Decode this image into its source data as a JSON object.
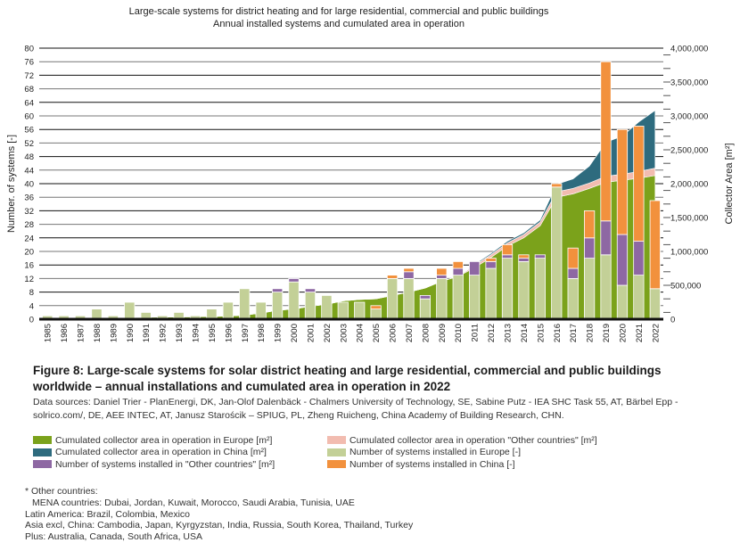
{
  "chart_data": {
    "type": "bar",
    "title": "Large-scale systems for district heating and for large residential, commercial and public buildings",
    "subtitle": "Annual installed systems and cumulated area in operation",
    "xlabel": "",
    "ylabel": "Number. of systems [-]",
    "ylabel_right": "Collector Area [m²]",
    "ylim": [
      0,
      80
    ],
    "ylim_right": [
      0,
      4000000
    ],
    "yticks": [
      "0",
      "4",
      "8",
      "12",
      "16",
      "20",
      "24",
      "28",
      "32",
      "36",
      "40",
      "44",
      "48",
      "52",
      "56",
      "60",
      "64",
      "68",
      "72",
      "76",
      "80"
    ],
    "yticks_right": [
      "0",
      "500,000",
      "1,000,000",
      "1,500,000",
      "2,000,000",
      "2,500,000",
      "3,000,000",
      "3,500,000",
      "4,000,000"
    ],
    "grid": true,
    "categories": [
      "1985",
      "1986",
      "1987",
      "1988",
      "1989",
      "1990",
      "1991",
      "1992",
      "1993",
      "1994",
      "1995",
      "1996",
      "1997",
      "1998",
      "1999",
      "2000",
      "2001",
      "2002",
      "2003",
      "2004",
      "2005",
      "2006",
      "2007",
      "2008",
      "2009",
      "2010",
      "2011",
      "2012",
      "2013",
      "2014",
      "2015",
      "2016",
      "2017",
      "2018",
      "2019",
      "2020",
      "2021",
      "2022"
    ],
    "bar_series": [
      {
        "name": "Number of systems installed in Europe [-]",
        "color": "#c3d097",
        "values": [
          1,
          1,
          1,
          3,
          1,
          5,
          2,
          1,
          2,
          1,
          3,
          5,
          9,
          5,
          8,
          11,
          8,
          7,
          5,
          5,
          3,
          12,
          12,
          6,
          12,
          13,
          13,
          15,
          18,
          17,
          18,
          39,
          12,
          18,
          19,
          10,
          13,
          9
        ]
      },
      {
        "name": "Number of systems installed in \"Other countries\" [m²]",
        "color": "#8e68a3",
        "values": [
          0,
          0,
          0,
          0,
          0,
          0,
          0,
          0,
          0,
          0,
          0,
          0,
          0,
          0,
          1,
          1,
          1,
          0,
          0,
          0,
          0,
          0,
          2,
          1,
          1,
          2,
          4,
          2,
          1,
          1,
          1,
          0,
          3,
          6,
          10,
          15,
          10,
          0
        ]
      },
      {
        "name": "Number of systems installed in China [-]",
        "color": "#f2913d",
        "values": [
          0,
          0,
          0,
          0,
          0,
          0,
          0,
          0,
          0,
          0,
          0,
          0,
          0,
          0,
          0,
          0,
          0,
          0,
          0,
          0,
          1,
          1,
          1,
          0,
          2,
          2,
          0,
          1,
          3,
          1,
          0,
          1,
          6,
          8,
          47,
          31,
          34,
          26
        ]
      }
    ],
    "area_series": [
      {
        "name": "Cumulated collector area in operation in Europe [m²]",
        "color": "#7ba21b",
        "values": [
          5000,
          8000,
          10000,
          15000,
          18000,
          25000,
          28000,
          30000,
          33000,
          35000,
          40000,
          45000,
          60000,
          90000,
          130000,
          150000,
          190000,
          220000,
          270000,
          290000,
          300000,
          350000,
          400000,
          460000,
          560000,
          630000,
          760000,
          910000,
          1080000,
          1200000,
          1380000,
          1800000,
          1850000,
          1930000,
          2020000,
          2050000,
          2080000,
          2120000
        ]
      },
      {
        "name": "Cumulated collector area in operation \"Other countries\" [m²]",
        "color": "#f2bcb0",
        "values": [
          0,
          0,
          0,
          0,
          0,
          0,
          0,
          0,
          0,
          0,
          0,
          0,
          0,
          0,
          0,
          0,
          0,
          0,
          0,
          0,
          0,
          0,
          0,
          0,
          0,
          0,
          35000,
          40000,
          45000,
          50000,
          55000,
          80000,
          80000,
          80000,
          90000,
          90000,
          100000,
          110000
        ]
      },
      {
        "name": "Cumulated collector area in operation in China [m²]",
        "color": "#2e6b7e",
        "values": [
          0,
          0,
          0,
          0,
          0,
          0,
          0,
          0,
          0,
          0,
          0,
          0,
          0,
          0,
          0,
          0,
          0,
          0,
          0,
          0,
          0,
          0,
          0,
          0,
          0,
          0,
          15000,
          20000,
          25000,
          25000,
          30000,
          110000,
          140000,
          250000,
          500000,
          560000,
          730000,
          850000
        ]
      }
    ]
  },
  "caption": {
    "title": "Figure 8: Large-scale systems for solar district heating and large residential, commercial and public buildings worldwide – annual installations and cumulated area in operation in 2022",
    "sources": "Data sources: Daniel Trier - PlanEnergi, DK, Jan-Olof Dalenbäck - Chalmers University of Technology, SE, Sabine Putz - IEA SHC Task 55, AT, Bärbel Epp - solrico.com/, DE, AEE  INTEC, AT, Janusz Starościk – SPIUG, PL, Zheng Ruicheng, China Academy of Building Research, CHN."
  },
  "legend": {
    "left": [
      {
        "label": "Cumulated collector area in operation in Europe [m²]",
        "color": "#7ba21b"
      },
      {
        "label": "Cumulated collector area in operation in China [m²]",
        "color": "#2e6b7e"
      },
      {
        "label": "Number of systems installed in \"Other countries\" [m²]",
        "color": "#8e68a3"
      }
    ],
    "right": [
      {
        "label": "Cumulated collector area in operation \"Other countries\" [m²]",
        "color": "#f2bcb0"
      },
      {
        "label": "Number of systems installed in Europe [-]",
        "color": "#c3d097"
      },
      {
        "label": "Number of systems installed in China [-]",
        "color": "#f2913d"
      }
    ]
  },
  "notes": {
    "heading": "* Other countries:",
    "lines": [
      "MENA countries: Dubai, Jordan, Kuwait, Morocco, Saudi Arabia, Tunisia, UAE",
      "Latin America:  Brazil, Colombia, Mexico",
      "Asia excl, China: Cambodia, Japan, Kyrgyzstan, India, Russia, South Korea, Thailand, Turkey",
      "Plus: Australia, Canada, South Africa, USA"
    ]
  }
}
